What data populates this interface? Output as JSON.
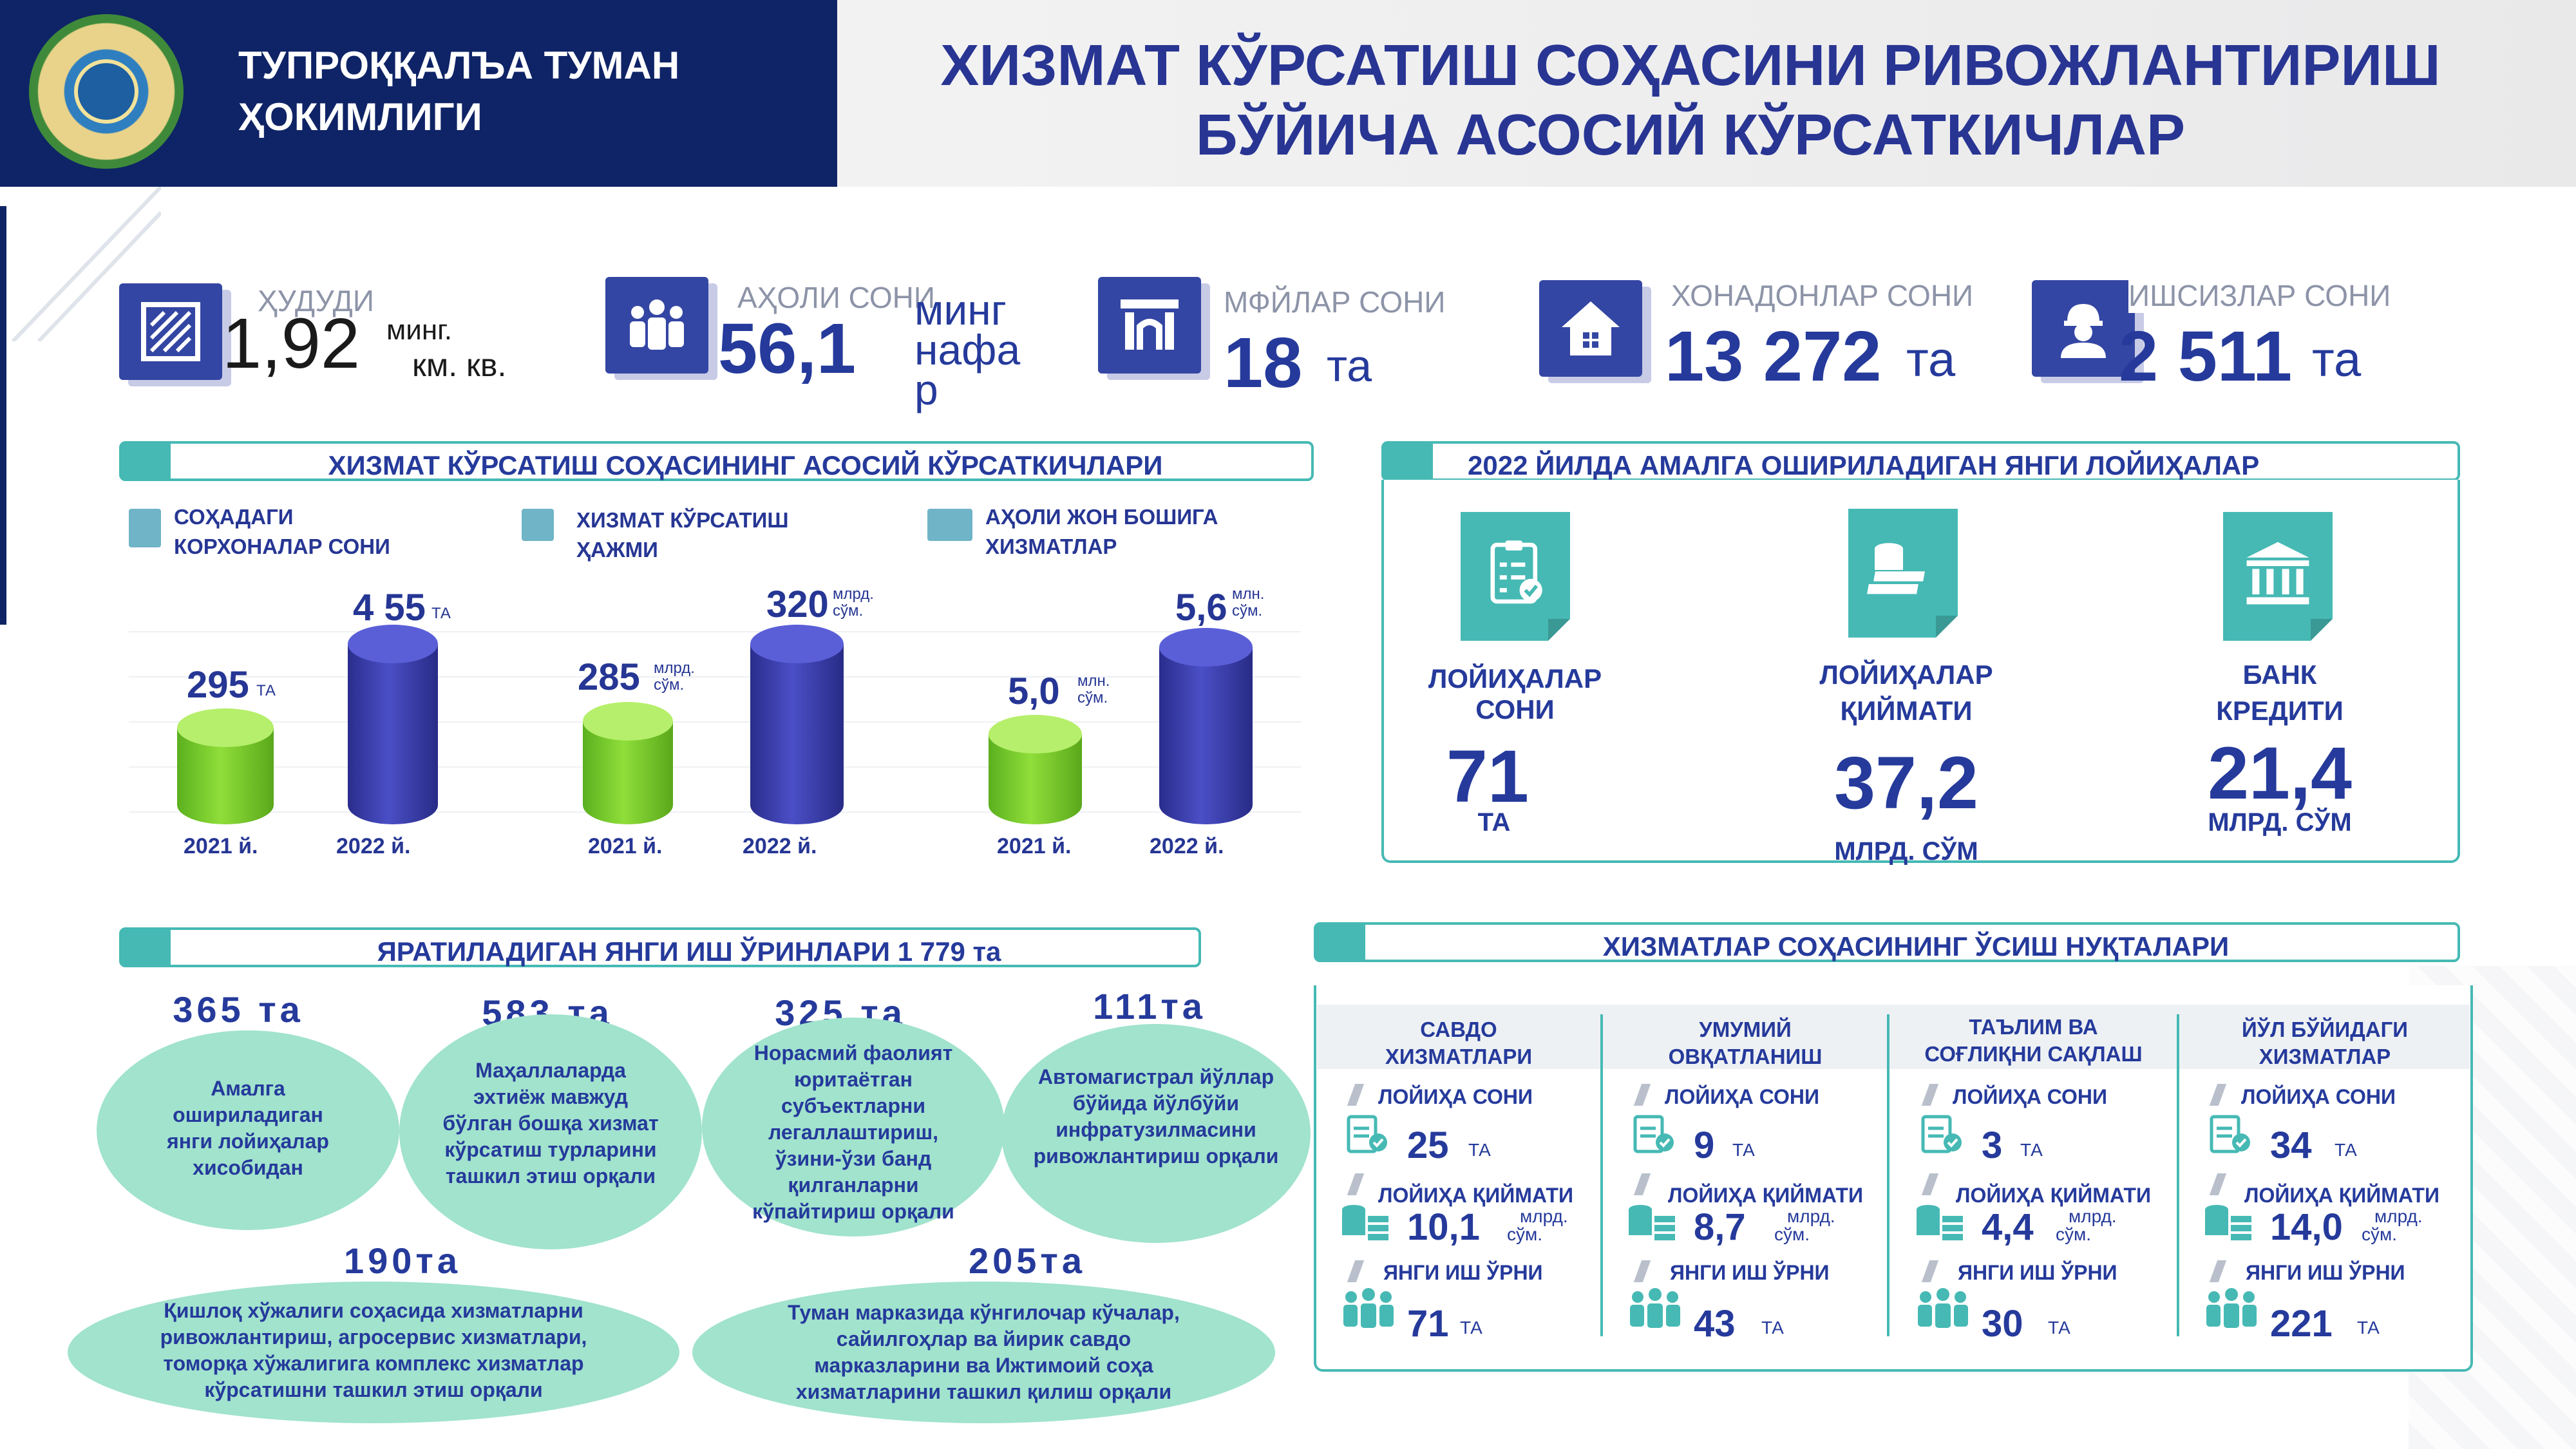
{
  "header": {
    "org_line1": "ТУПРОҚҚАЛЪА ТУМАН",
    "org_line2": "ҲОКИМЛИГИ",
    "title_line1": "ХИЗМАТ КЎРСАТИШ СОҲАСИНИ РИВОЖЛАНТИРИШ",
    "title_line2": "БЎЙИЧА АСОСИЙ КЎРСАТКИЧЛАР"
  },
  "kpis": [
    {
      "icon": "area-icon",
      "label": "ҲУДУДИ",
      "value": "1,92",
      "unit1": "минг.",
      "unit2": "км. кв."
    },
    {
      "icon": "population-icon",
      "label": "АҲОЛИ СОНИ",
      "value": "56,1",
      "unit1": "минг",
      "unit2": "нафа",
      "unit3": "р"
    },
    {
      "icon": "building-icon",
      "label": "МФЙЛАР СОНИ",
      "value": "18",
      "unit1": "та"
    },
    {
      "icon": "house-icon",
      "label": "ХОНАДОНЛАР СОНИ",
      "value": "13 272",
      "unit1": "та"
    },
    {
      "icon": "worker-icon",
      "label": "ИШСИЗЛАР СОНИ",
      "value": "2 511",
      "unit1": "та"
    }
  ],
  "main_indicators": {
    "title": "ХИЗМАТ КЎРСАТИШ СОҲАСИНИНГ АСОСИЙ КЎРСАТКИЧЛАРИ",
    "groups": [
      {
        "label1": "СОҲАДАГИ",
        "label2": "КОРХОНАЛАР СОНИ",
        "v2021": "295",
        "u2021": "ТА",
        "v2022": "4 55",
        "u2022": "ТА",
        "y2021": "2021 й.",
        "y2022": "2022 й."
      },
      {
        "label1": "ХИЗМАТ КЎРСАТИШ",
        "label2": "ҲАЖМИ",
        "v2021": "285",
        "u2021a": "млрд.",
        "u2021b": "сўм.",
        "v2022": "320",
        "u2022a": "млрд.",
        "u2022b": "сўм.",
        "y2021": "2021 й.",
        "y2022": "2022 й."
      },
      {
        "label1": "АҲОЛИ ЖОН  БОШИГА",
        "label2": "ХИЗМАТЛАР",
        "v2021": "5,0",
        "u2021a": "млн.",
        "u2021b": "сўм.",
        "v2022": "5,6",
        "u2022a": "млн.",
        "u2022b": "сўм.",
        "y2021": "2021 й.",
        "y2022": "2022 й."
      }
    ]
  },
  "chart_data": {
    "type": "bar",
    "title": "ХИЗМАТ КЎРСАТИШ СОҲАСИНИНГ АСОСИЙ КЎРСАТКИЧЛАРИ",
    "categories": [
      "2021 й.",
      "2022 й."
    ],
    "series": [
      {
        "name": "СОҲАДАГИ КОРХОНАЛАР СОНИ",
        "values": [
          295,
          455
        ]
      },
      {
        "name": "ХИЗМАТ КЎРСАТИШ ҲАЖМИ (млрд. сўм.)",
        "values": [
          285,
          320
        ]
      },
      {
        "name": "АҲОЛИ ЖОН БОШИГА ХИЗМАТЛАР (млн. сўм.)",
        "values": [
          5.0,
          5.6
        ]
      }
    ]
  },
  "projects_2022": {
    "title": "2022 ЙИЛДА АМАЛГА ОШИРИЛАДИГАН ЯНГИ ЛОЙИҲАЛАР",
    "items": [
      {
        "icon": "checklist-icon",
        "label1": "ЛОЙИҲАЛАР",
        "label2": "СОНИ",
        "value": "71",
        "unit": "ТА"
      },
      {
        "icon": "money-stack-icon",
        "label1": "ЛОЙИҲАЛАР",
        "label2": "ҚИЙМАТИ",
        "value": "37,2",
        "unit": "МЛРД. СЎМ"
      },
      {
        "icon": "bank-icon",
        "label1": "БАНК",
        "label2": "КРЕДИТИ",
        "value": "21,4",
        "unit": "МЛРД. СЎМ"
      }
    ]
  },
  "jobs": {
    "title": "ЯРАТИЛАДИГАН ЯНГИ ИШ ЎРИНЛАРИ 1 779 та",
    "items": [
      {
        "value": "365 та",
        "text": [
          "Амалга",
          "ошириладиган",
          "янги лойиҳалар",
          "хисобидан"
        ]
      },
      {
        "value": "583 та",
        "text": [
          "Маҳаллаларда",
          "эхтиёж мавжуд",
          "бўлган бошқа хизмат",
          "кўрсатиш турларини",
          "ташкил этиш орқали"
        ]
      },
      {
        "value": "325 та",
        "text": [
          "Норасмий фаолият",
          "юритаётган",
          "субъектларни",
          "легаллаштириш,",
          "ўзини-ўзи банд",
          "қилганларни",
          "кўпайтириш  орқали"
        ]
      },
      {
        "value": "111та",
        "text": [
          "Автомагистрал йўллар",
          "бўйида йўлбўйи",
          "инфратузилмасини",
          "ривожлантириш  орқали"
        ]
      },
      {
        "value": "190та",
        "text": [
          "Қишлоқ хўжалиги соҳасида хизматларни",
          "ривожлантириш, агросервис хизматлари,",
          "томорқа хўжалигига комплекс хизматлар",
          "кўрсатишни ташкил этиш орқали"
        ]
      },
      {
        "value": "205та",
        "text": [
          "Туман марказида кўнгилочар кўчалар,",
          "сайилгоҳлар ва йирик савдо",
          "марказларини ва Ижтимоий соҳа",
          "хизматларини ташкил қилиш орқали"
        ]
      }
    ]
  },
  "growth": {
    "title": "ХИЗМАТЛАР СОҲАСИНИНГ ЎСИШ НУҚТАЛАРИ",
    "label_count": "ЛОЙИҲА СОНИ",
    "label_value": "ЛОЙИҲА ҚИЙМАТИ",
    "label_jobs": "ЯНГИ ИШ ЎРНИ",
    "unit_ta": "ТА",
    "unit_mlrd": "млрд.",
    "unit_sum": "сўм.",
    "columns": [
      {
        "head1": "САВДО",
        "head2": "ХИЗМАТЛАРИ",
        "count": "25",
        "value": "10,1",
        "jobs": "71"
      },
      {
        "head1": "УМУМИЙ",
        "head2": "ОВҚАТЛАНИШ",
        "count": "9",
        "value": "8,7",
        "jobs": "43"
      },
      {
        "head1": "ТАЪЛИМ ВА",
        "head2": "СОҒЛИҚНИ САҚЛАШ",
        "count": "3",
        "value": "4,4",
        "jobs": "30"
      },
      {
        "head1": "ЙЎЛ БЎЙИДАГИ",
        "head2": "ХИЗМАТЛАР",
        "count": "34",
        "value": "14,0",
        "jobs": "221"
      }
    ]
  },
  "colors": {
    "navy": "#0f2466",
    "teal": "#46b9b4",
    "blue": "#253a9b",
    "green": "#7ccf2f",
    "mint": "#a1e3cd"
  }
}
